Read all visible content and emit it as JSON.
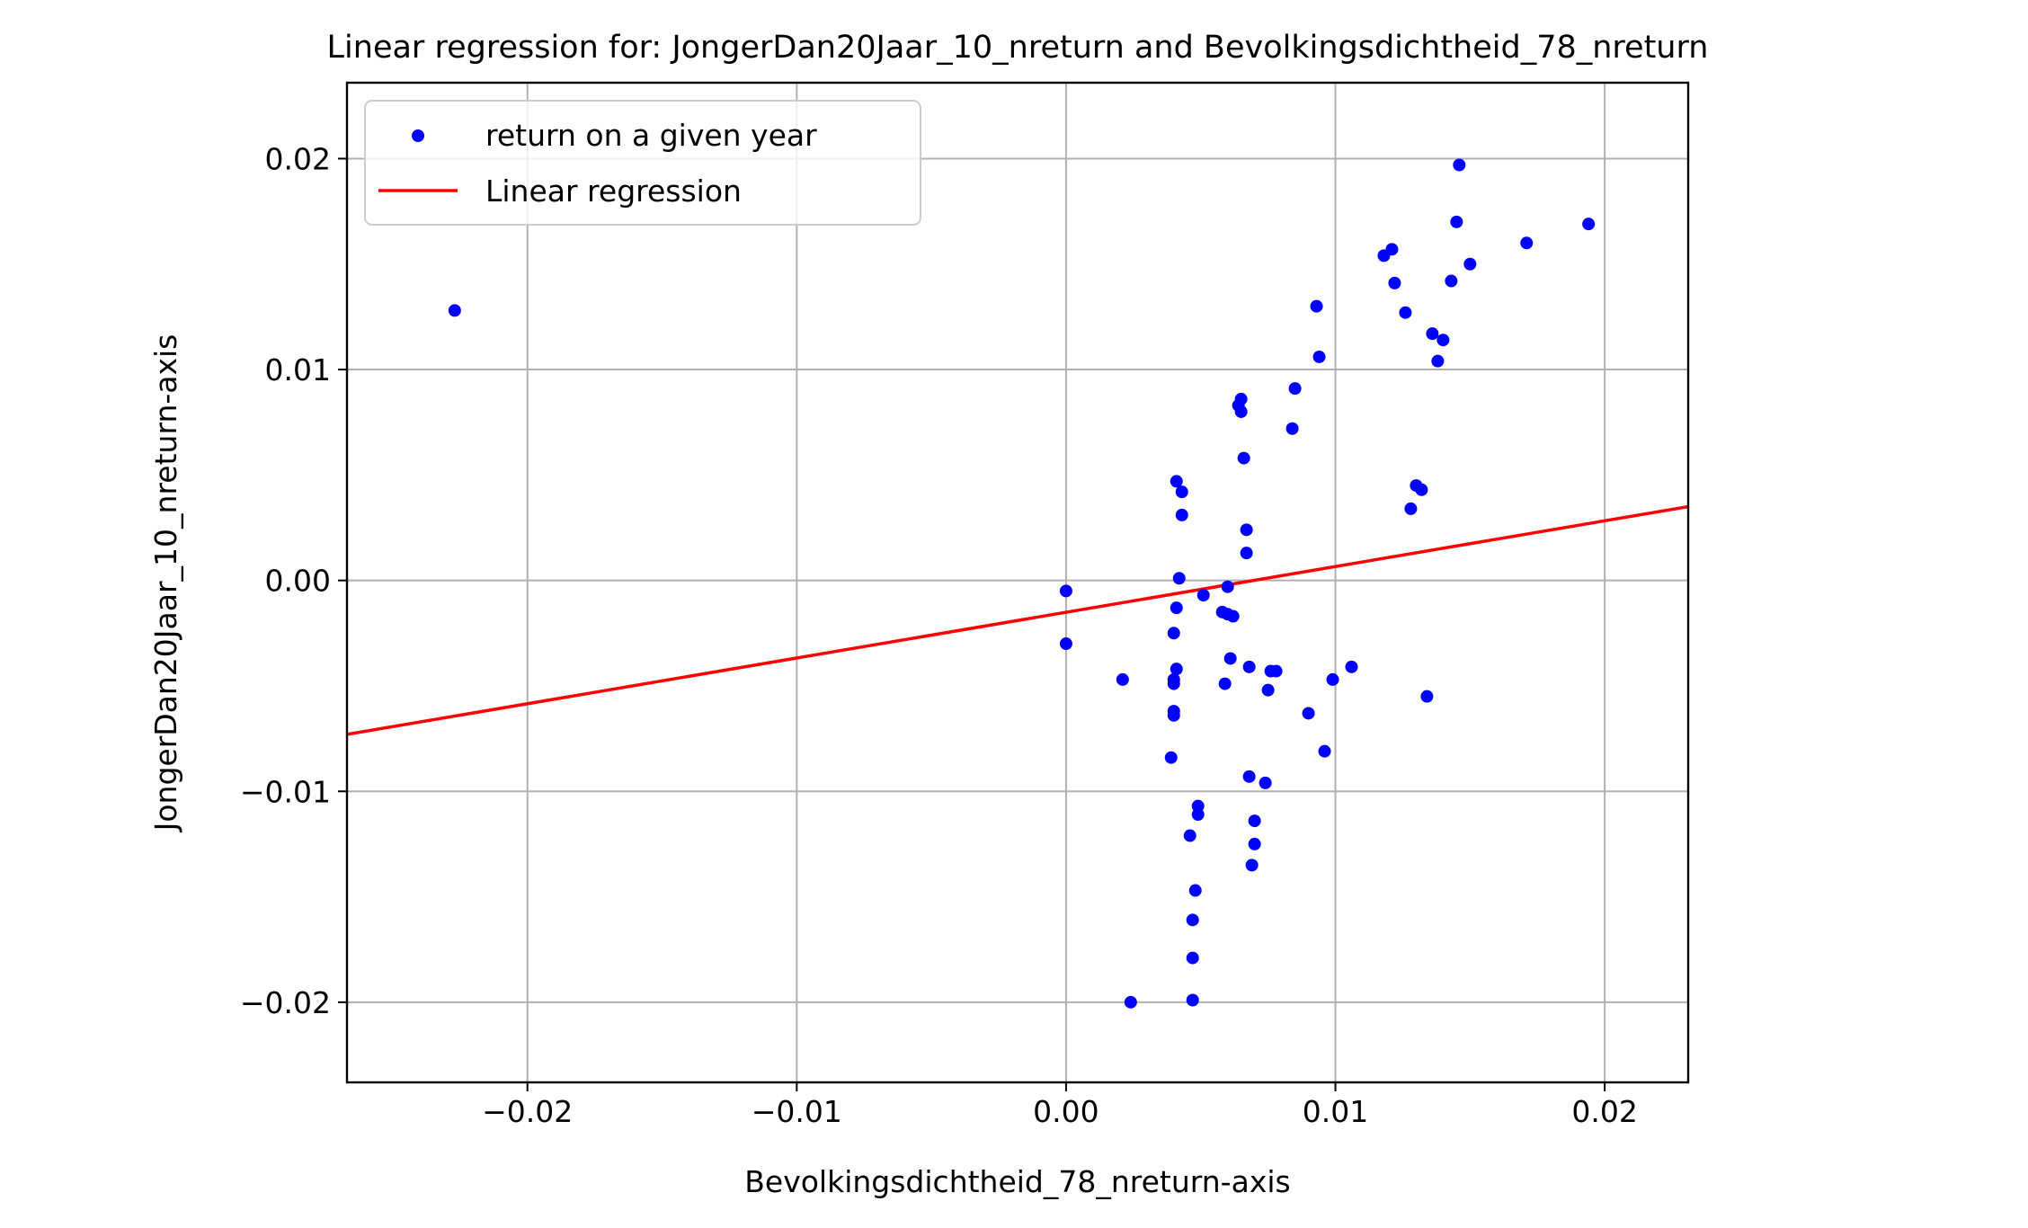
{
  "chart_data": {
    "type": "scatter",
    "title": "Linear regression for: JongerDan20Jaar_10_nreturn and Bevolkingsdichtheid_78_nreturn",
    "xlabel": "Bevolkingsdichtheid_78_nreturn-axis",
    "ylabel": "JongerDan20Jaar_10_nreturn-axis",
    "xlim": [
      -0.0267,
      0.0231
    ],
    "ylim": [
      -0.0238,
      0.0236
    ],
    "x_ticks": [
      -0.02,
      -0.01,
      0.0,
      0.01,
      0.02
    ],
    "x_tick_labels": [
      "−0.02",
      "−0.01",
      "0.00",
      "0.01",
      "0.02"
    ],
    "y_ticks": [
      -0.02,
      -0.01,
      0.0,
      0.01,
      0.02
    ],
    "y_tick_labels": [
      "−0.02",
      "−0.01",
      "0.00",
      "0.01",
      "0.02"
    ],
    "grid": true,
    "legend_position": "top-left",
    "series": [
      {
        "name": "return on a given year",
        "type": "scatter",
        "color": "#0000ff",
        "points": [
          [
            -0.0227,
            0.0128
          ],
          [
            0.0,
            -0.0005
          ],
          [
            0.0,
            -0.003
          ],
          [
            0.0021,
            -0.0047
          ],
          [
            0.0024,
            -0.02
          ],
          [
            0.0039,
            -0.0084
          ],
          [
            0.004,
            -0.0025
          ],
          [
            0.004,
            -0.0047
          ],
          [
            0.004,
            -0.0049
          ],
          [
            0.004,
            -0.0062
          ],
          [
            0.004,
            -0.0064
          ],
          [
            0.0041,
            -0.0013
          ],
          [
            0.0041,
            -0.0042
          ],
          [
            0.0041,
            0.0047
          ],
          [
            0.0042,
            0.0001
          ],
          [
            0.0043,
            0.0042
          ],
          [
            0.0043,
            0.0031
          ],
          [
            0.0046,
            -0.0121
          ],
          [
            0.0047,
            -0.0161
          ],
          [
            0.0047,
            -0.0179
          ],
          [
            0.0047,
            -0.0199
          ],
          [
            0.0048,
            -0.0147
          ],
          [
            0.0049,
            -0.0107
          ],
          [
            0.0049,
            -0.0111
          ],
          [
            0.0051,
            -0.0007
          ],
          [
            0.0058,
            -0.0015
          ],
          [
            0.0059,
            -0.0049
          ],
          [
            0.006,
            -0.0003
          ],
          [
            0.006,
            -0.0016
          ],
          [
            0.0061,
            -0.0037
          ],
          [
            0.0062,
            -0.0017
          ],
          [
            0.0064,
            0.0083
          ],
          [
            0.0065,
            0.0086
          ],
          [
            0.0065,
            0.008
          ],
          [
            0.0066,
            0.0058
          ],
          [
            0.0067,
            0.0024
          ],
          [
            0.0067,
            0.0013
          ],
          [
            0.0068,
            -0.0041
          ],
          [
            0.0068,
            -0.0093
          ],
          [
            0.0069,
            -0.0135
          ],
          [
            0.007,
            -0.0114
          ],
          [
            0.007,
            -0.0125
          ],
          [
            0.0074,
            -0.0096
          ],
          [
            0.0075,
            -0.0052
          ],
          [
            0.0076,
            -0.0043
          ],
          [
            0.0078,
            -0.0043
          ],
          [
            0.0084,
            0.0072
          ],
          [
            0.0085,
            0.0091
          ],
          [
            0.009,
            -0.0063
          ],
          [
            0.0093,
            0.013
          ],
          [
            0.0094,
            0.0106
          ],
          [
            0.0096,
            -0.0081
          ],
          [
            0.0099,
            -0.0047
          ],
          [
            0.0106,
            -0.0041
          ],
          [
            0.0118,
            0.0154
          ],
          [
            0.0121,
            0.0157
          ],
          [
            0.0122,
            0.0141
          ],
          [
            0.0126,
            0.0127
          ],
          [
            0.0128,
            0.0034
          ],
          [
            0.013,
            0.0045
          ],
          [
            0.0132,
            0.0043
          ],
          [
            0.0134,
            -0.0055
          ],
          [
            0.0136,
            0.0117
          ],
          [
            0.0138,
            0.0104
          ],
          [
            0.014,
            0.0114
          ],
          [
            0.0143,
            0.0142
          ],
          [
            0.0145,
            0.017
          ],
          [
            0.0146,
            0.0197
          ],
          [
            0.015,
            0.015
          ],
          [
            0.0171,
            0.016
          ],
          [
            0.0194,
            0.0169
          ]
        ]
      },
      {
        "name": "Linear regression",
        "type": "line",
        "color": "#ff0000",
        "points": [
          [
            -0.0267,
            -0.0073
          ],
          [
            0.0231,
            0.0035
          ]
        ]
      }
    ]
  }
}
